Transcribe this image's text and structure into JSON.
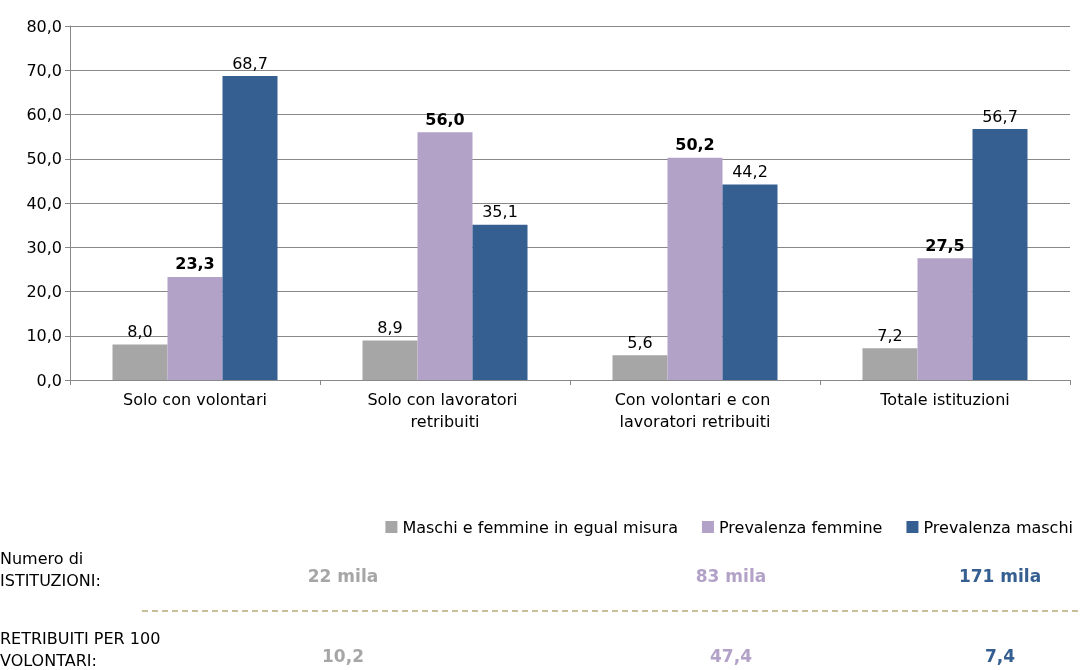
{
  "chart_data": {
    "type": "bar",
    "categories": [
      "Solo con volontari",
      "Solo con lavoratori retribuiti",
      "Con volontari e con lavoratori retribuiti",
      "Totale istituzioni"
    ],
    "series": [
      {
        "name": "Maschi e femmine in egual misura",
        "color": "#a6a6a6",
        "values": [
          8.0,
          8.9,
          5.6,
          7.2
        ],
        "value_labels": [
          "8,0",
          "8,9",
          "5,6",
          "7,2"
        ]
      },
      {
        "name": "Prevalenza femmine",
        "color": "#b3a2c7",
        "values": [
          23.3,
          56.0,
          50.2,
          27.5
        ],
        "value_labels": [
          "23,3",
          "56,0",
          "50,2",
          "27,5"
        ]
      },
      {
        "name": "Prevalenza maschi",
        "color": "#355f91",
        "values": [
          68.7,
          35.1,
          44.2,
          56.7
        ],
        "value_labels": [
          "68,7",
          "35,1",
          "44,2",
          "56,7"
        ]
      }
    ],
    "ylim": [
      0,
      80
    ],
    "yticks": [
      {
        "value": 0,
        "label": "0,0"
      },
      {
        "value": 10,
        "label": "10,0"
      },
      {
        "value": 20,
        "label": "20,0"
      },
      {
        "value": 30,
        "label": "30,0"
      },
      {
        "value": 40,
        "label": "40,0"
      },
      {
        "value": 50,
        "label": "50,0"
      },
      {
        "value": 60,
        "label": "60,0"
      },
      {
        "value": 70,
        "label": "70,0"
      },
      {
        "value": 80,
        "label": "80,0"
      }
    ],
    "grid": "y",
    "legend": "bottom",
    "annotations": [
      "Numero di ISTITUZIONI:",
      "22 mila",
      "83 mila",
      "171 mila",
      "RETRIBUITI PER 100 VOLONTARI:",
      "10,2",
      "47,4",
      "7,4"
    ]
  }
}
